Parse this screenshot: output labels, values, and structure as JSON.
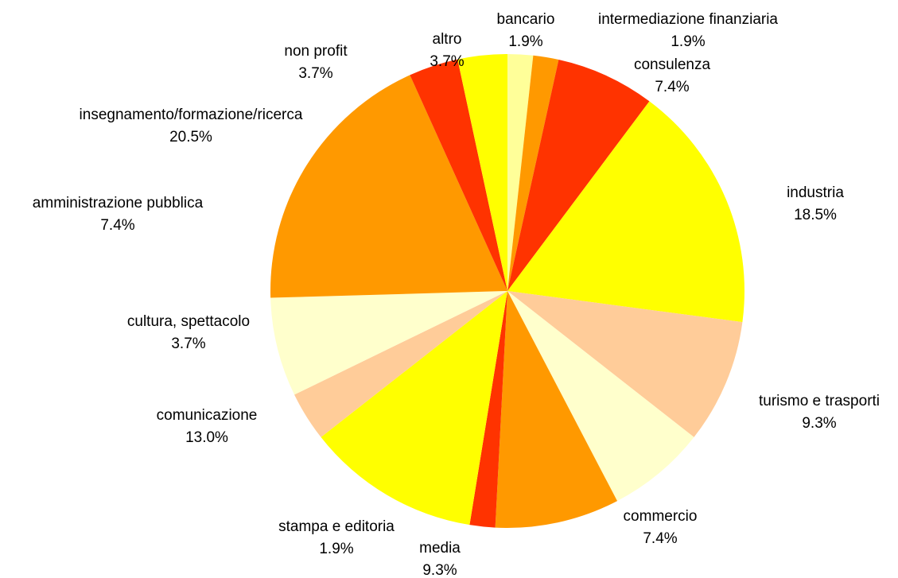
{
  "chart_data": {
    "type": "pie",
    "categories": [
      "bancario",
      "intermediazione finanziaria",
      "consulenza",
      "industria",
      "turismo e trasporti",
      "commercio",
      "media",
      "stampa e editoria",
      "comunicazione",
      "cultura, spettacolo",
      "amministrazione pubblica",
      "insegnamento/formazione/ricerca",
      "non profit",
      "altro"
    ],
    "values": [
      1.9,
      1.9,
      7.4,
      18.5,
      9.3,
      7.4,
      9.3,
      1.9,
      13.0,
      3.7,
      7.4,
      20.5,
      3.7,
      3.7
    ],
    "value_labels": [
      "1.9%",
      "1.9%",
      "7.4%",
      "18.5%",
      "9.3%",
      "7.4%",
      "9.3%",
      "1.9%",
      "13.0%",
      "3.7%",
      "7.4%",
      "20.5%",
      "3.7%",
      "3.7%"
    ],
    "colors": [
      "#FFFF99",
      "#FF9900",
      "#FF3300",
      "#FFFF00",
      "#FFCC99",
      "#FFFFCC",
      "#FF9900",
      "#FF3300",
      "#FFFF00",
      "#FFCC99",
      "#FFFFCC",
      "#FF9900",
      "#FF3300",
      "#FFFF00"
    ]
  }
}
